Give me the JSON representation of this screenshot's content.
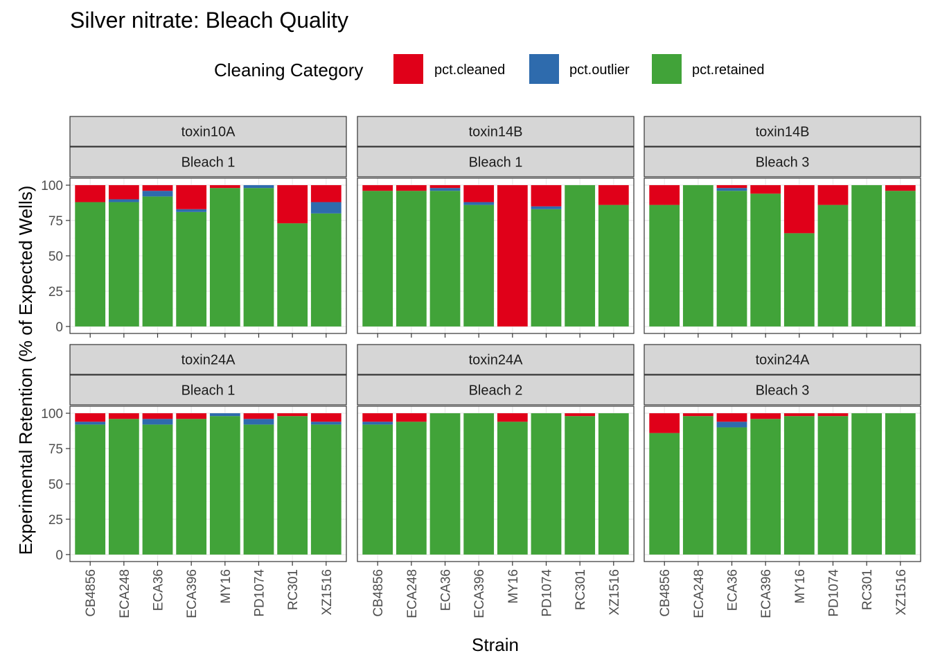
{
  "chart_data": {
    "type": "bar",
    "stacked": true,
    "title": "Silver nitrate: Bleach Quality",
    "xlabel": "Strain",
    "ylabel": "Experimental Retention (% of Expected Wells)",
    "ylim": [
      0,
      100
    ],
    "yticks": [
      "0",
      "25",
      "50",
      "75",
      "100"
    ],
    "legend": {
      "title": "Cleaning Category",
      "position": "top",
      "entries": [
        {
          "key": "cleaned",
          "label": "pct.cleaned",
          "color": "#E00019"
        },
        {
          "key": "outlier",
          "label": "pct.outlier",
          "color": "#2E6BAD"
        },
        {
          "key": "retained",
          "label": "pct.retained",
          "color": "#41A339"
        }
      ]
    },
    "categories": [
      "CB4856",
      "ECA248",
      "ECA36",
      "ECA396",
      "MY16",
      "PD1074",
      "RC301",
      "XZ1516"
    ],
    "panels": [
      {
        "condition": "toxin10A",
        "bleach": "Bleach 1",
        "retained": [
          88,
          88,
          92,
          81,
          98,
          98,
          73,
          80
        ],
        "outlier": [
          0,
          2,
          4,
          2,
          0,
          2,
          0,
          8
        ],
        "cleaned": [
          12,
          10,
          4,
          17,
          2,
          0,
          27,
          12
        ]
      },
      {
        "condition": "toxin14B",
        "bleach": "Bleach 1",
        "retained": [
          96,
          96,
          96,
          86,
          0,
          83,
          100,
          86
        ],
        "outlier": [
          0,
          0,
          2,
          2,
          0,
          2,
          0,
          0
        ],
        "cleaned": [
          4,
          4,
          2,
          12,
          100,
          15,
          0,
          14
        ]
      },
      {
        "condition": "toxin14B",
        "bleach": "Bleach 3",
        "retained": [
          86,
          100,
          96,
          94,
          66,
          86,
          100,
          96
        ],
        "outlier": [
          0,
          0,
          2,
          0,
          0,
          0,
          0,
          0
        ],
        "cleaned": [
          14,
          0,
          2,
          6,
          34,
          14,
          0,
          4
        ]
      },
      {
        "condition": "toxin24A",
        "bleach": "Bleach 1",
        "retained": [
          92,
          96,
          92,
          96,
          98,
          92,
          98,
          92
        ],
        "outlier": [
          2,
          0,
          4,
          0,
          2,
          4,
          0,
          2
        ],
        "cleaned": [
          6,
          4,
          4,
          4,
          0,
          4,
          2,
          6
        ]
      },
      {
        "condition": "toxin24A",
        "bleach": "Bleach 2",
        "retained": [
          92,
          94,
          100,
          100,
          94,
          100,
          98,
          100
        ],
        "outlier": [
          2,
          0,
          0,
          0,
          0,
          0,
          0,
          0
        ],
        "cleaned": [
          6,
          6,
          0,
          0,
          6,
          0,
          2,
          0
        ]
      },
      {
        "condition": "toxin24A",
        "bleach": "Bleach 3",
        "retained": [
          86,
          98,
          90,
          96,
          98,
          98,
          100,
          100
        ],
        "outlier": [
          0,
          0,
          4,
          0,
          0,
          0,
          0,
          0
        ],
        "cleaned": [
          14,
          2,
          6,
          4,
          2,
          2,
          0,
          0
        ]
      }
    ]
  }
}
